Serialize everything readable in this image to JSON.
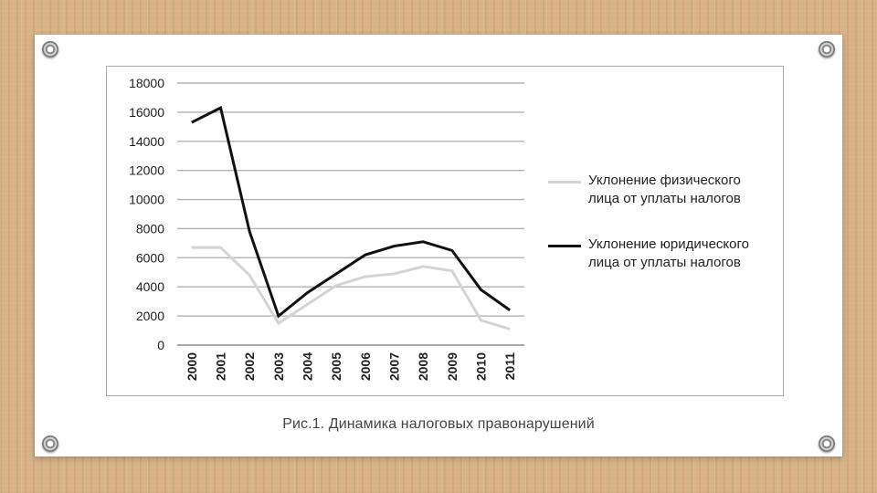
{
  "colors": {
    "physical": "#d4d4d4",
    "legal": "#111111",
    "grid": "#b3b3b3",
    "axis_text": "#222222"
  },
  "caption": "Рис.1. Динамика налоговых правонарушений",
  "chart_data": {
    "type": "line",
    "title": "",
    "xlabel": "",
    "ylabel": "",
    "ylim": [
      0,
      18000
    ],
    "yticks": [
      0,
      2000,
      4000,
      6000,
      8000,
      10000,
      12000,
      14000,
      16000,
      18000
    ],
    "grid": true,
    "legend_position": "right",
    "x": [
      "2000",
      "2001",
      "2002",
      "2003",
      "2004",
      "2005",
      "2006",
      "2007",
      "2008",
      "2009",
      "2010",
      "2011"
    ],
    "series": [
      {
        "name": "Уклонение физического лица от уплаты налогов",
        "color": "#d4d4d4",
        "values": [
          6700,
          6700,
          4800,
          1500,
          2800,
          4100,
          4700,
          4900,
          5400,
          5100,
          1700,
          1100
        ]
      },
      {
        "name": "Уклонение юридического лица от уплаты налогов",
        "color": "#111111",
        "values": [
          15300,
          16300,
          7800,
          2000,
          3600,
          4900,
          6200,
          6800,
          7100,
          6500,
          3800,
          2400
        ]
      }
    ]
  }
}
